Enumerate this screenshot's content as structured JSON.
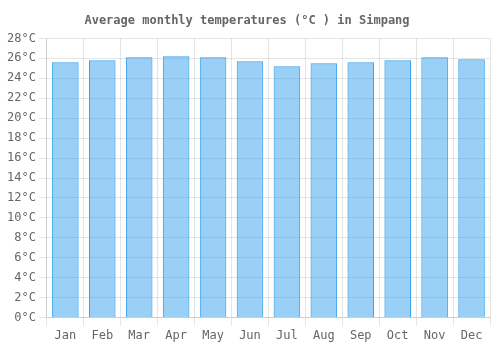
{
  "chart_data": {
    "type": "bar",
    "title": "Average monthly temperatures (°C ) in Simpang",
    "categories": [
      "Jan",
      "Feb",
      "Mar",
      "Apr",
      "May",
      "Jun",
      "Jul",
      "Aug",
      "Sep",
      "Oct",
      "Nov",
      "Dec"
    ],
    "values": [
      25.6,
      25.8,
      26.1,
      26.2,
      26.1,
      25.7,
      25.2,
      25.5,
      25.6,
      25.8,
      26.1,
      25.9
    ],
    "ylim": [
      0,
      28
    ],
    "yticks": [
      {
        "value": 0,
        "label": "0°C"
      },
      {
        "value": 2,
        "label": "2°C"
      },
      {
        "value": 4,
        "label": "4°C"
      },
      {
        "value": 6,
        "label": "6°C"
      },
      {
        "value": 8,
        "label": "8°C"
      },
      {
        "value": 10,
        "label": "10°C"
      },
      {
        "value": 12,
        "label": "12°C"
      },
      {
        "value": 14,
        "label": "14°C"
      },
      {
        "value": 16,
        "label": "16°C"
      },
      {
        "value": 18,
        "label": "18°C"
      },
      {
        "value": 20,
        "label": "20°C"
      },
      {
        "value": 22,
        "label": "22°C"
      },
      {
        "value": 24,
        "label": "24°C"
      },
      {
        "value": 26,
        "label": "26°C"
      },
      {
        "value": 28,
        "label": "28°C"
      }
    ],
    "grid": true
  }
}
